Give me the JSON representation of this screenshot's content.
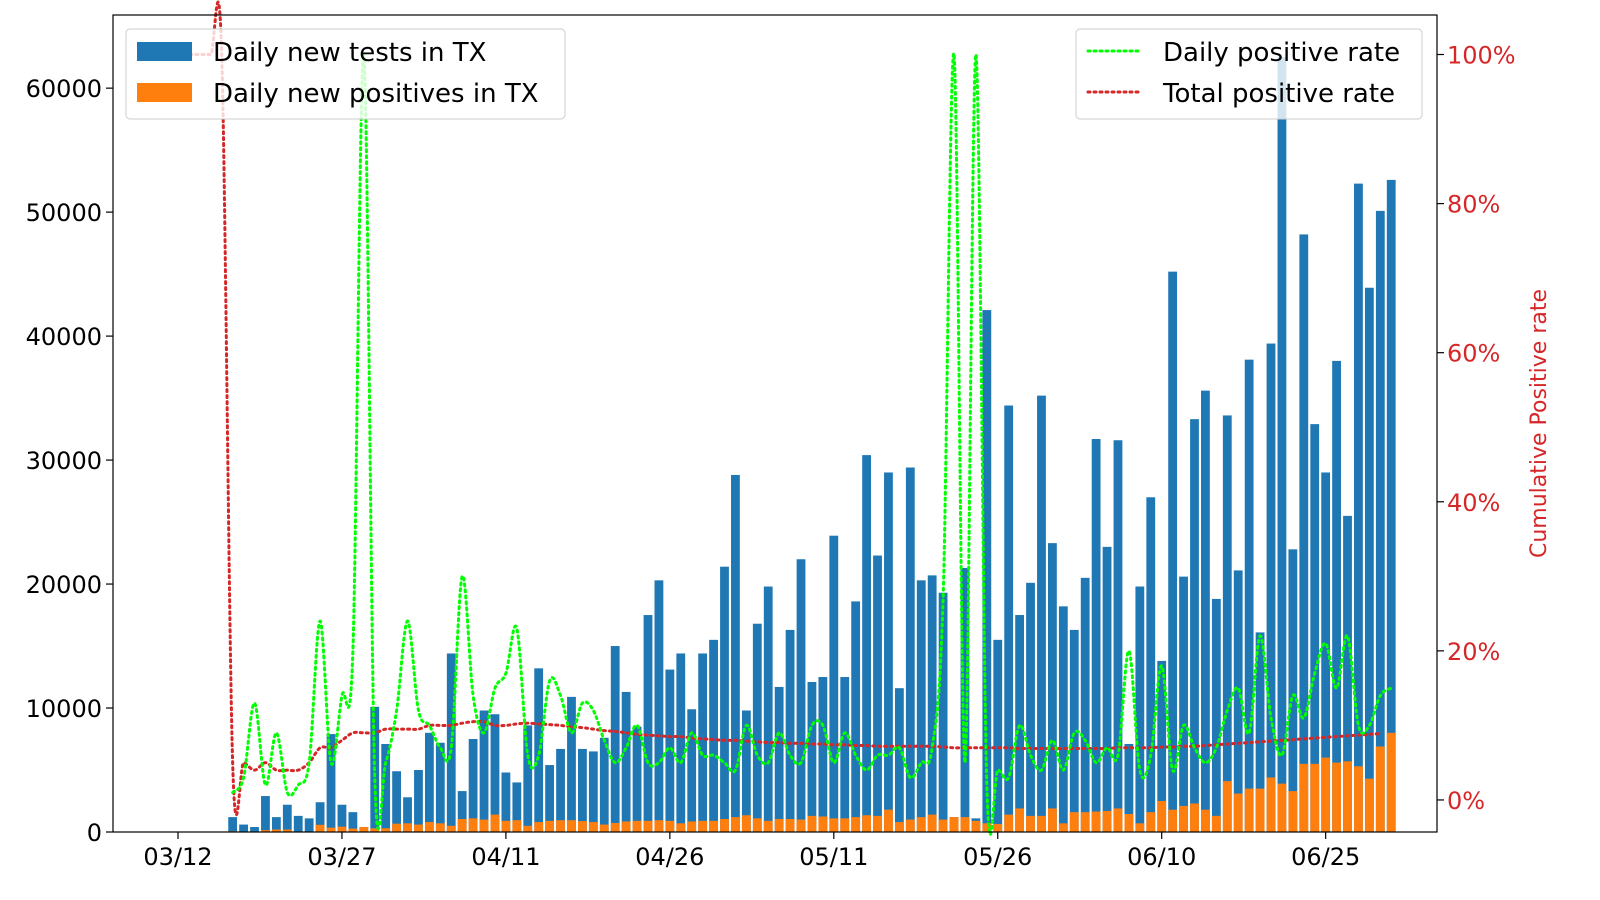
{
  "chart_data": {
    "type": "bar",
    "title": "",
    "xlabel": "",
    "ylabel": "",
    "y2label": "Cumulative Positive rate",
    "xtick_labels": [
      "03/12",
      "03/27",
      "04/11",
      "04/26",
      "05/11",
      "05/26",
      "06/10",
      "06/25"
    ],
    "xtick_day_index": [
      0,
      15,
      30,
      45,
      60,
      75,
      90,
      105
    ],
    "ylim": [
      0,
      65900
    ],
    "yticks": [
      0,
      10000,
      20000,
      30000,
      40000,
      50000,
      60000
    ],
    "yticks_labels": [
      "0",
      "10000",
      "20000",
      "30000",
      "40000",
      "50000",
      "60000"
    ],
    "y2lim": [
      -0.043,
      1.053
    ],
    "y2ticks": [
      0,
      0.2,
      0.4,
      0.6,
      0.8,
      1.0
    ],
    "y2ticks_labels": [
      "0%",
      "20%",
      "40%",
      "60%",
      "80%",
      "100%"
    ],
    "bar_day_index_start": 5,
    "colors": {
      "tests": "#1f77b4",
      "positives": "#ff7f0e",
      "daily_rate": "#00ff00",
      "total_rate": "#d62728",
      "axis_right": "#d62728"
    },
    "legend_left": {
      "placement": "upper-left",
      "entries": [
        "Daily new tests in TX",
        "Daily new positives in TX"
      ]
    },
    "legend_right": {
      "placement": "upper-right",
      "entries": [
        "Daily positive rate",
        "Total positive rate"
      ]
    },
    "series": [
      {
        "name": "Daily new tests in TX",
        "kind": "bar",
        "values": [
          1200,
          600,
          400,
          2900,
          1200,
          2200,
          1300,
          1100,
          2400,
          7900,
          2200,
          1600,
          400,
          10100,
          7100,
          4900,
          2800,
          5000,
          8000,
          7200,
          14400,
          3300,
          7500,
          9800,
          9500,
          4800,
          4000,
          8600,
          13200,
          5400,
          6700,
          10900,
          6700,
          6500,
          7600,
          15000,
          11300,
          8500,
          17500,
          20300,
          13100,
          14400,
          9900,
          14400,
          15500,
          21400,
          28800,
          9800,
          16800,
          19800,
          11700,
          16300,
          22000,
          12100,
          12500,
          23900,
          12500,
          18600,
          30400,
          22300,
          29000,
          11600,
          29400,
          20300,
          20700,
          19300,
          1200,
          21300,
          1100,
          42100,
          15500,
          34400,
          17500,
          20100,
          35200,
          23300,
          18200,
          16300,
          20500,
          31700,
          23000,
          31600,
          7100,
          19800,
          27000,
          13800,
          45200,
          20600,
          33300,
          35600,
          18800,
          33600,
          21100,
          38100,
          16100,
          39400,
          62500,
          22800,
          48200,
          32900,
          29000,
          38000,
          25500,
          52300,
          43900,
          50100,
          52600
        ]
      },
      {
        "name": "Daily new positives in TX",
        "kind": "bar",
        "values": [
          60,
          40,
          20,
          150,
          200,
          200,
          40,
          40,
          580,
          350,
          430,
          270,
          400,
          300,
          300,
          670,
          700,
          600,
          800,
          700,
          500,
          1050,
          1100,
          1000,
          1400,
          900,
          950,
          500,
          800,
          900,
          950,
          950,
          880,
          800,
          600,
          730,
          850,
          900,
          900,
          950,
          900,
          700,
          850,
          900,
          900,
          1050,
          1200,
          1350,
          1100,
          900,
          1050,
          1050,
          1000,
          1300,
          1250,
          1100,
          1100,
          1200,
          1350,
          1300,
          1800,
          800,
          1000,
          1200,
          1400,
          1000,
          1200,
          1200,
          900,
          700,
          650,
          1400,
          1900,
          1300,
          1300,
          1900,
          700,
          1600,
          1600,
          1650,
          1700,
          1900,
          1450,
          700,
          1600,
          2500,
          1800,
          2100,
          2300,
          1800,
          1300,
          4100,
          3100,
          3500,
          3500,
          4400,
          3900,
          3300,
          5500,
          5500,
          6000,
          5600,
          5700,
          5300,
          4300,
          6900,
          8000
        ]
      },
      {
        "name": "Daily positive rate",
        "kind": "line",
        "axis": "right",
        "x_start": 5,
        "values": [
          0.01,
          0.03,
          0.13,
          0.02,
          0.09,
          0.01,
          0.02,
          0.05,
          0.24,
          0.05,
          0.14,
          0.2,
          1.0,
          0.03,
          0.05,
          0.12,
          0.24,
          0.12,
          0.1,
          0.07,
          0.07,
          0.3,
          0.14,
          0.09,
          0.15,
          0.17,
          0.23,
          0.06,
          0.06,
          0.16,
          0.14,
          0.09,
          0.13,
          0.12,
          0.08,
          0.05,
          0.07,
          0.1,
          0.05,
          0.05,
          0.07,
          0.05,
          0.09,
          0.06,
          0.06,
          0.05,
          0.04,
          0.1,
          0.06,
          0.05,
          0.09,
          0.06,
          0.05,
          0.1,
          0.1,
          0.05,
          0.09,
          0.06,
          0.04,
          0.06,
          0.06,
          0.07,
          0.03,
          0.05,
          0.07,
          0.27,
          1.0,
          0.05,
          1.0,
          0.02,
          0.04,
          0.03,
          0.1,
          0.06,
          0.04,
          0.08,
          0.04,
          0.09,
          0.08,
          0.05,
          0.07,
          0.06,
          0.2,
          0.04,
          0.06,
          0.18,
          0.04,
          0.1,
          0.07,
          0.05,
          0.07,
          0.12,
          0.15,
          0.09,
          0.22,
          0.11,
          0.06,
          0.14,
          0.11,
          0.17,
          0.21,
          0.15,
          0.22,
          0.1,
          0.1,
          0.14,
          0.15
        ]
      },
      {
        "name": "Total positive rate",
        "kind": "line",
        "axis": "right",
        "x_start": 0,
        "values": [
          1.0,
          1.0,
          1.0,
          1.0,
          1.0,
          0.05,
          0.05,
          0.04,
          0.05,
          0.04,
          0.04,
          0.04,
          0.05,
          0.07,
          0.07,
          0.08,
          0.09,
          0.09,
          0.09,
          0.095,
          0.095,
          0.095,
          0.095,
          0.1,
          0.1,
          0.1,
          0.103,
          0.105,
          0.105,
          0.1,
          0.1,
          0.102,
          0.103,
          0.102,
          0.101,
          0.1,
          0.098,
          0.097,
          0.095,
          0.093,
          0.092,
          0.09,
          0.088,
          0.087,
          0.086,
          0.085,
          0.085,
          0.083,
          0.082,
          0.081,
          0.08,
          0.08,
          0.079,
          0.078,
          0.077,
          0.077,
          0.076,
          0.076,
          0.075,
          0.075,
          0.074,
          0.074,
          0.073,
          0.073,
          0.072,
          0.072,
          0.072,
          0.072,
          0.072,
          0.072,
          0.071,
          0.07,
          0.07,
          0.07,
          0.07,
          0.07,
          0.07,
          0.069,
          0.069,
          0.069,
          0.069,
          0.069,
          0.069,
          0.069,
          0.069,
          0.069,
          0.07,
          0.07,
          0.07,
          0.07,
          0.071,
          0.071,
          0.072,
          0.072,
          0.073,
          0.074,
          0.075,
          0.076,
          0.077,
          0.078,
          0.079,
          0.08,
          0.081,
          0.082,
          0.083,
          0.084,
          0.085,
          0.086,
          0.087,
          0.088,
          0.089
        ]
      }
    ]
  }
}
